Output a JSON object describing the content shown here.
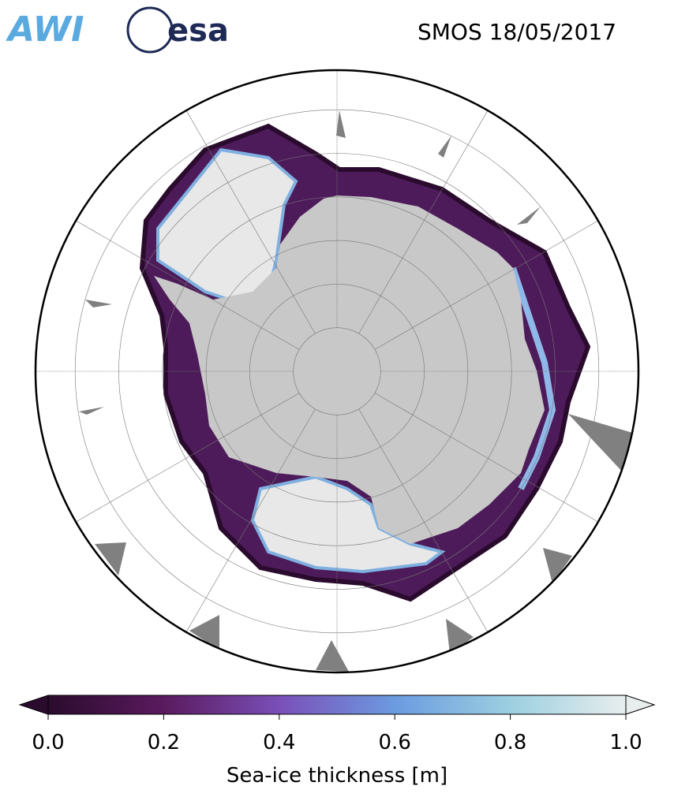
{
  "header": {
    "logos": [
      "AWI",
      "esa"
    ],
    "title": "SMOS 18/05/2017"
  },
  "colorbar": {
    "label": "Sea-ice thickness [m]",
    "range": [
      0,
      1
    ],
    "ticks": [
      {
        "value": 0,
        "label": "0.0"
      },
      0.2,
      0.4,
      0.6,
      0.8,
      {
        "value": 1,
        "label": "1.0"
      }
    ],
    "colors": [
      "#2a0b2d",
      "#5a1a5e",
      "#7a4fb8",
      "#6b9be0",
      "#9ccfe0",
      "#e8eeee"
    ]
  }
}
